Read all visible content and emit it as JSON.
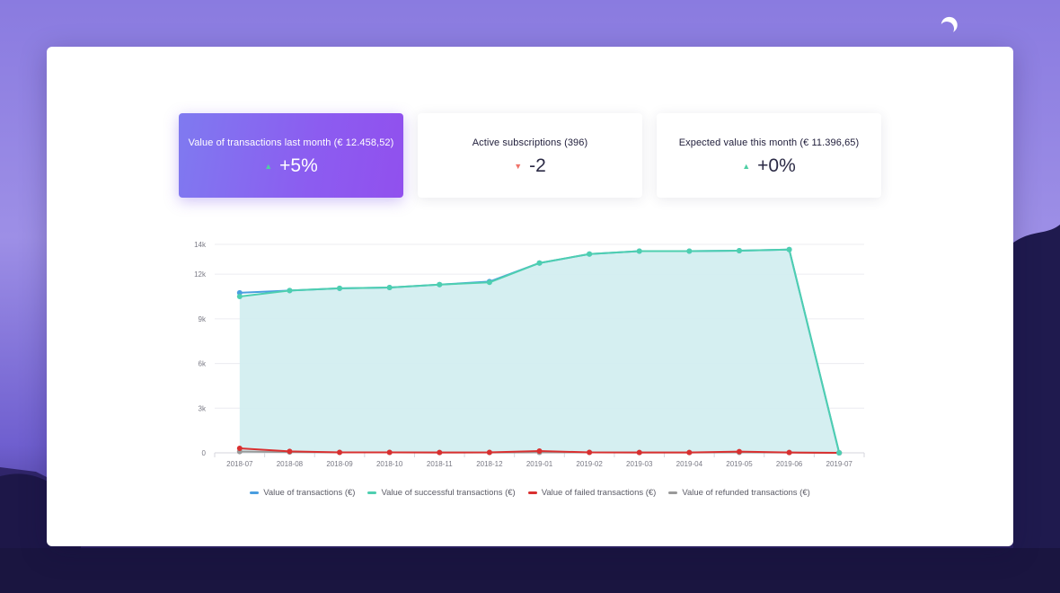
{
  "colors": {
    "accent_gradient_start": "#7f7af0",
    "accent_gradient_end": "#9150ee",
    "up": "#4ecfa4",
    "down": "#f0736a",
    "series_total": "#4a9ee0",
    "series_success": "#4ecfb0",
    "series_failed": "#d93030",
    "series_refunded": "#9a9a9a",
    "area_fill": "#d3eef0"
  },
  "cards": [
    {
      "title": "Value of transactions last month (€ 12.458,52)",
      "arrow": "▲",
      "direction": "up",
      "delta": "+5%"
    },
    {
      "title": "Active subscriptions (396)",
      "arrow": "▼",
      "direction": "down",
      "delta": "-2"
    },
    {
      "title": "Expected value this month (€ 11.396,65)",
      "arrow": "▲",
      "direction": "up",
      "delta": "+0%"
    }
  ],
  "chart_data": {
    "type": "area",
    "categories": [
      "2018-07",
      "2018-08",
      "2018-09",
      "2018-10",
      "2018-11",
      "2018-12",
      "2019-01",
      "2019-02",
      "2019-03",
      "2019-04",
      "2019-05",
      "2019-06",
      "2019-07"
    ],
    "y_ticks": [
      "14k",
      "12k",
      "9k",
      "6k",
      "3k",
      "0"
    ],
    "y_tick_values": [
      14000,
      12000,
      9000,
      6000,
      3000,
      0
    ],
    "ylim": [
      0,
      14000
    ],
    "grid": true,
    "legend_position": "bottom",
    "series": [
      {
        "name": "Value of transactions (€)",
        "color": "#4a9ee0",
        "values": [
          10750,
          10900,
          11050,
          11100,
          11300,
          11500,
          12750,
          13350,
          13550,
          13550,
          13580,
          13650,
          0
        ]
      },
      {
        "name": "Value of successful transactions (€)",
        "color": "#4ecfb0",
        "values": [
          10500,
          10900,
          11050,
          11100,
          11300,
          11450,
          12750,
          13350,
          13550,
          13550,
          13580,
          13650,
          0
        ]
      },
      {
        "name": "Value of failed transactions (€)",
        "color": "#d93030",
        "values": [
          300,
          100,
          30,
          30,
          20,
          30,
          120,
          30,
          20,
          20,
          80,
          20,
          0
        ]
      },
      {
        "name": "Value of refunded transactions (€)",
        "color": "#9a9a9a",
        "values": [
          80,
          50,
          30,
          30,
          20,
          20,
          30,
          30,
          20,
          20,
          30,
          20,
          0
        ]
      }
    ]
  }
}
